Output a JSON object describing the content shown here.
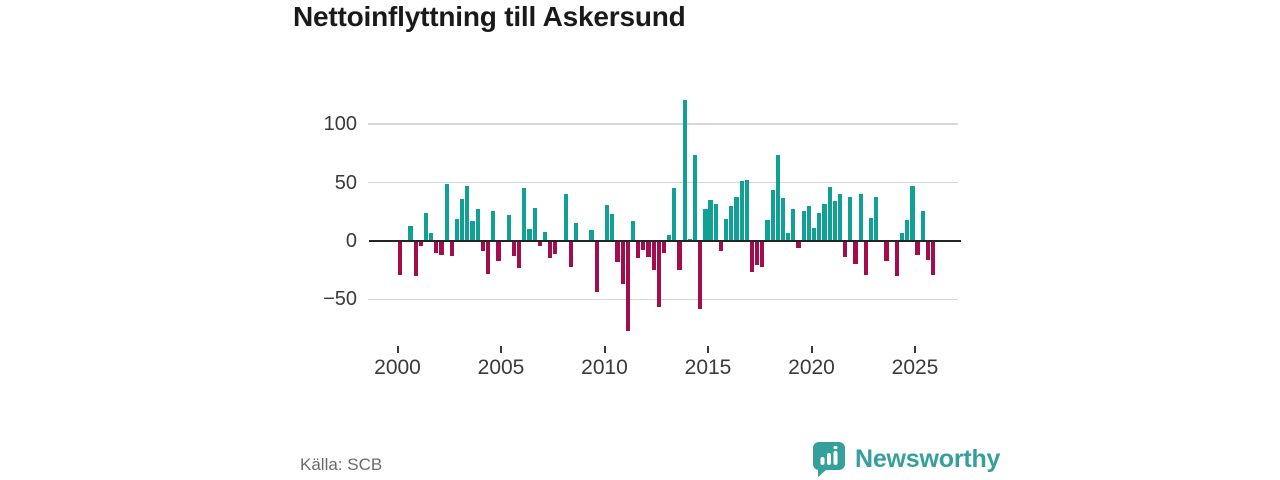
{
  "header": {
    "title": "Nettoinflyttning till Askersund"
  },
  "chart_data": {
    "type": "bar",
    "title": "Nettoinflyttning till Askersund",
    "frequency": "quarterly",
    "start_year": 2000,
    "end_year": 2025,
    "values": [
      -28,
      0,
      13,
      -29,
      -3,
      24,
      7,
      -9,
      -11,
      49,
      -12,
      19,
      36,
      47,
      17,
      27,
      -8,
      -27,
      26,
      -16,
      0,
      22,
      -12,
      -22,
      45,
      10,
      28,
      -3,
      8,
      -14,
      -10,
      0,
      40,
      -21,
      15,
      0,
      0,
      9,
      -43,
      0,
      31,
      23,
      -17,
      -36,
      -76,
      17,
      -14,
      -7,
      -13,
      -24,
      -56,
      -9,
      5,
      45,
      -24,
      121,
      2,
      74,
      -57,
      27,
      35,
      32,
      -8,
      19,
      30,
      38,
      51,
      52,
      -26,
      -20,
      -21,
      18,
      44,
      74,
      37,
      7,
      27,
      -5,
      26,
      30,
      11,
      24,
      32,
      46,
      34,
      40,
      -13,
      38,
      -19,
      40,
      -28,
      20,
      38,
      0,
      -16,
      0,
      -29,
      7,
      18,
      47,
      -11,
      26,
      -15,
      -28
    ],
    "x_tick_labels": [
      "2000",
      "2005",
      "2010",
      "2015",
      "2020",
      "2025"
    ],
    "x_tick_years": [
      2000,
      2005,
      2010,
      2015,
      2020,
      2025
    ],
    "y_tick_values": [
      100,
      50,
      0,
      -50
    ],
    "y_tick_labels": [
      "100",
      "50",
      "0",
      "−50"
    ],
    "ylim": [
      -85,
      130
    ],
    "grid": true,
    "legend": "none",
    "colors": {
      "positive": "#11a096",
      "negative": "#a30d4d",
      "axis": "#242424",
      "gridline": "#d6d6d6",
      "brand": "#35a09b"
    }
  },
  "footer": {
    "source": "Källa: SCB",
    "brand": "Newsworthy"
  }
}
